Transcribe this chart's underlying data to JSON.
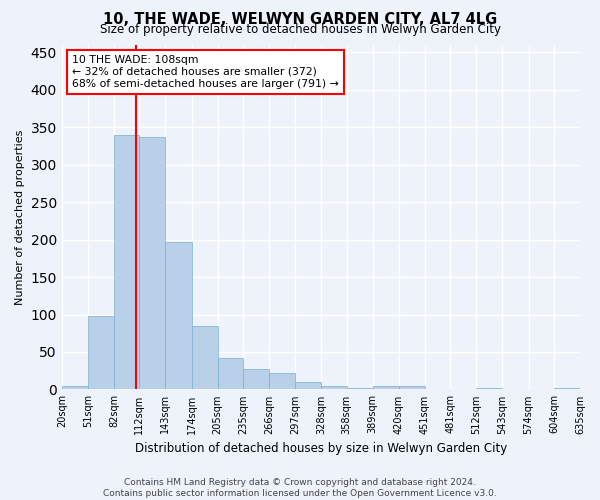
{
  "title": "10, THE WADE, WELWYN GARDEN CITY, AL7 4LG",
  "subtitle": "Size of property relative to detached houses in Welwyn Garden City",
  "xlabel": "Distribution of detached houses by size in Welwyn Garden City",
  "ylabel": "Number of detached properties",
  "bar_color": "#b8d0e8",
  "bar_edge_color": "#7aafd4",
  "background_color": "#eef2fb",
  "grid_color": "#ffffff",
  "bin_edges": [
    20,
    51,
    82,
    112,
    143,
    174,
    205,
    235,
    266,
    297,
    328,
    358,
    389,
    420,
    451,
    481,
    512,
    543,
    574,
    604,
    635
  ],
  "bin_labels": [
    "20sqm",
    "51sqm",
    "82sqm",
    "112sqm",
    "143sqm",
    "174sqm",
    "205sqm",
    "235sqm",
    "266sqm",
    "297sqm",
    "328sqm",
    "358sqm",
    "389sqm",
    "420sqm",
    "451sqm",
    "481sqm",
    "512sqm",
    "543sqm",
    "574sqm",
    "604sqm",
    "635sqm"
  ],
  "bar_heights": [
    5,
    98,
    340,
    337,
    197,
    85,
    42,
    27,
    22,
    10,
    5,
    2,
    4,
    4,
    1,
    0,
    2,
    0,
    1,
    2
  ],
  "vline_x": 108,
  "annotation_text": "10 THE WADE: 108sqm\n← 32% of detached houses are smaller (372)\n68% of semi-detached houses are larger (791) →",
  "ylim": [
    0,
    460
  ],
  "yticks": [
    0,
    50,
    100,
    150,
    200,
    250,
    300,
    350,
    400,
    450
  ],
  "footer_line1": "Contains HM Land Registry data © Crown copyright and database right 2024.",
  "footer_line2": "Contains public sector information licensed under the Open Government Licence v3.0."
}
